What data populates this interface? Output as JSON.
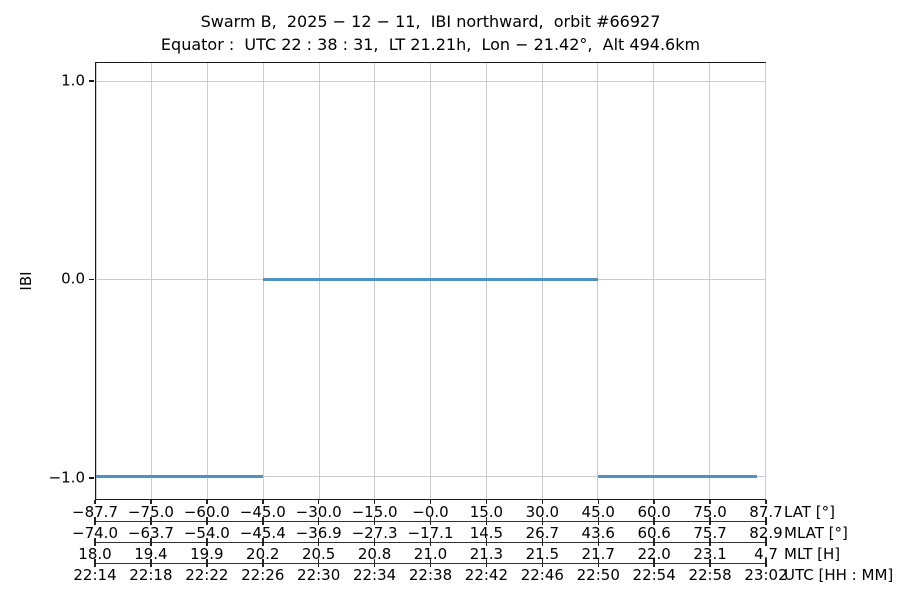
{
  "chart_data": {
    "type": "line",
    "title": "Swarm B,  2025 − 12 − 11,  IBI northward,  orbit #66927",
    "subtitle": "Equator :  UTC 22 : 38 : 31,  LT 21.21h,  Lon − 21.42°,  Alt 494.6km",
    "ylabel": "IBI",
    "ylim": [
      -1.112,
      1.096
    ],
    "grid": true,
    "legend_position": "none",
    "yticks": [
      {
        "value": 1.0,
        "label": "1.0"
      },
      {
        "value": 0.0,
        "label": "0.0"
      },
      {
        "value": -1.0,
        "label": "−1.0"
      }
    ],
    "series": [
      {
        "name": "IBI",
        "color": "#4c92c3",
        "note": "x expressed as fraction of time axis from UTC 22:14 to 23:02; gaps between segments (no vertical connectors)",
        "segments": [
          {
            "x_frac_start": 0.0,
            "x_frac_end": 0.25,
            "y": -1.0
          },
          {
            "x_frac_start": 0.25,
            "x_frac_end": 0.75,
            "y": 0.0
          },
          {
            "x_frac_start": 0.75,
            "x_frac_end": 0.988,
            "y": -1.0
          }
        ],
        "transitions_utc": [
          "22:26",
          "22:50"
        ]
      }
    ],
    "x_axes": [
      {
        "label": "LAT [°]",
        "ticks": [
          "−87.7",
          "−75.0",
          "−60.0",
          "−45.0",
          "−30.0",
          "−15.0",
          "−0.0",
          "15.0",
          "30.0",
          "45.0",
          "60.0",
          "75.0",
          "87.7"
        ]
      },
      {
        "label": "MLAT [°]",
        "ticks": [
          "−74.0",
          "−63.7",
          "−54.0",
          "−45.4",
          "−36.9",
          "−27.3",
          "−17.1",
          "14.5",
          "26.7",
          "43.6",
          "60.6",
          "75.7",
          "82.9"
        ]
      },
      {
        "label": "MLT [H]",
        "ticks": [
          "18.0",
          "19.4",
          "19.9",
          "20.2",
          "20.5",
          "20.8",
          "21.0",
          "21.3",
          "21.5",
          "21.7",
          "22.0",
          "23.1",
          "4.7"
        ]
      },
      {
        "label": "UTC [HH : MM]",
        "ticks": [
          "22:14",
          "22:18",
          "22:22",
          "22:26",
          "22:30",
          "22:34",
          "22:38",
          "22:42",
          "22:46",
          "22:50",
          "22:54",
          "22:58",
          "23:02"
        ]
      }
    ],
    "colors": {
      "line": "#4c92c3",
      "grid": "#cccccc",
      "spine": "#1a1a1a",
      "text": "#000000",
      "background": "#ffffff"
    }
  }
}
